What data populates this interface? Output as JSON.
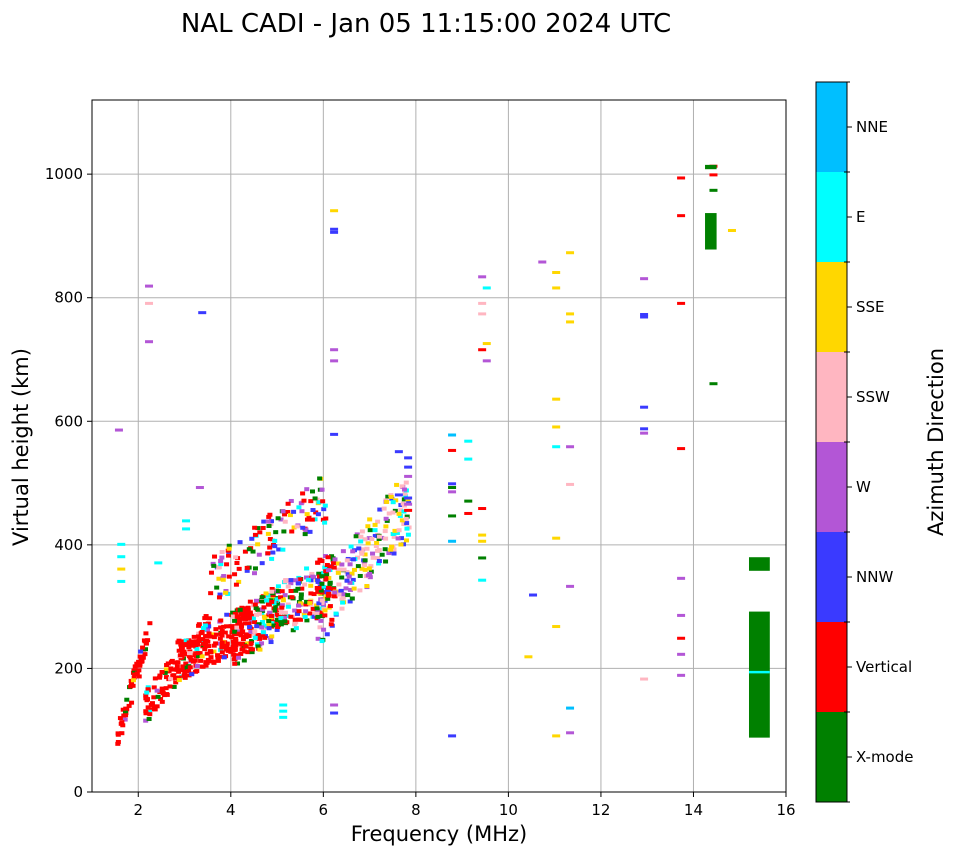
{
  "chart_data": {
    "type": "scatter",
    "title": "NAL CADI - Jan 05 11:15:00 2024 UTC",
    "xlabel": "Frequency (MHz)",
    "ylabel": "Virtual height (km)",
    "xlim": [
      1,
      16
    ],
    "ylim": [
      0,
      1120
    ],
    "xticks": [
      2,
      4,
      6,
      8,
      10,
      12,
      14,
      16
    ],
    "yticks": [
      0,
      200,
      400,
      600,
      800,
      1000
    ],
    "grid": true,
    "colorbar": {
      "label": "Azimuth Direction",
      "categories": [
        {
          "name": "X-mode",
          "color": "#008000"
        },
        {
          "name": "Vertical",
          "color": "#ff0000"
        },
        {
          "name": "NNW",
          "color": "#3a3aff"
        },
        {
          "name": "W",
          "color": "#b356d6"
        },
        {
          "name": "SSW",
          "color": "#ffb6c1"
        },
        {
          "name": "SSE",
          "color": "#ffd700"
        },
        {
          "name": "E",
          "color": "#00ffff"
        },
        {
          "name": "NNE",
          "color": "#00bfff"
        }
      ]
    },
    "echoes": [
      {
        "f": 1.55,
        "h": 585,
        "dir": "W"
      },
      {
        "f": 1.6,
        "h": 400,
        "dir": "E"
      },
      {
        "f": 1.6,
        "h": 380,
        "dir": "E"
      },
      {
        "f": 1.6,
        "h": 360,
        "dir": "SSE"
      },
      {
        "f": 1.6,
        "h": 340,
        "dir": "E"
      },
      {
        "f": 2.2,
        "h": 818,
        "dir": "W"
      },
      {
        "f": 2.2,
        "h": 790,
        "dir": "SSW"
      },
      {
        "f": 2.2,
        "h": 728,
        "dir": "W"
      },
      {
        "f": 2.4,
        "h": 370,
        "dir": "E"
      },
      {
        "f": 3.0,
        "h": 438,
        "dir": "E"
      },
      {
        "f": 3.0,
        "h": 425,
        "dir": "E"
      },
      {
        "f": 3.3,
        "h": 492,
        "dir": "W"
      },
      {
        "f": 3.35,
        "h": 775,
        "dir": "NNW"
      },
      {
        "f": 5.1,
        "h": 140,
        "dir": "E"
      },
      {
        "f": 5.1,
        "h": 130,
        "dir": "E"
      },
      {
        "f": 5.1,
        "h": 120,
        "dir": "E"
      },
      {
        "f": 6.2,
        "h": 940,
        "dir": "SSE"
      },
      {
        "f": 6.2,
        "h": 910,
        "dir": "NNW"
      },
      {
        "f": 6.2,
        "h": 905,
        "dir": "NNW"
      },
      {
        "f": 6.2,
        "h": 715,
        "dir": "W"
      },
      {
        "f": 6.2,
        "h": 697,
        "dir": "W"
      },
      {
        "f": 6.2,
        "h": 578,
        "dir": "NNW"
      },
      {
        "f": 6.2,
        "h": 140,
        "dir": "W"
      },
      {
        "f": 6.2,
        "h": 127,
        "dir": "NNW"
      },
      {
        "f": 7.6,
        "h": 550,
        "dir": "NNW"
      },
      {
        "f": 7.8,
        "h": 540,
        "dir": "NNW"
      },
      {
        "f": 7.8,
        "h": 525,
        "dir": "NNW"
      },
      {
        "f": 7.8,
        "h": 510,
        "dir": "W"
      },
      {
        "f": 7.6,
        "h": 480,
        "dir": "NNW"
      },
      {
        "f": 7.8,
        "h": 475,
        "dir": "NNW"
      },
      {
        "f": 7.8,
        "h": 465,
        "dir": "W"
      },
      {
        "f": 7.8,
        "h": 455,
        "dir": "Vertical"
      },
      {
        "f": 8.75,
        "h": 577,
        "dir": "NNE"
      },
      {
        "f": 8.75,
        "h": 552,
        "dir": "Vertical"
      },
      {
        "f": 8.75,
        "h": 498,
        "dir": "NNW"
      },
      {
        "f": 8.75,
        "h": 492,
        "dir": "X-mode"
      },
      {
        "f": 8.75,
        "h": 485,
        "dir": "W"
      },
      {
        "f": 8.75,
        "h": 446,
        "dir": "X-mode"
      },
      {
        "f": 8.75,
        "h": 405,
        "dir": "NNE"
      },
      {
        "f": 8.75,
        "h": 90,
        "dir": "NNW"
      },
      {
        "f": 9.1,
        "h": 567,
        "dir": "E"
      },
      {
        "f": 9.1,
        "h": 538,
        "dir": "E"
      },
      {
        "f": 9.1,
        "h": 470,
        "dir": "X-mode"
      },
      {
        "f": 9.1,
        "h": 450,
        "dir": "Vertical"
      },
      {
        "f": 9.4,
        "h": 833,
        "dir": "W"
      },
      {
        "f": 9.5,
        "h": 815,
        "dir": "E"
      },
      {
        "f": 9.4,
        "h": 790,
        "dir": "SSW"
      },
      {
        "f": 9.4,
        "h": 773,
        "dir": "SSW"
      },
      {
        "f": 9.5,
        "h": 725,
        "dir": "SSE"
      },
      {
        "f": 9.4,
        "h": 715,
        "dir": "Vertical"
      },
      {
        "f": 9.5,
        "h": 697,
        "dir": "W"
      },
      {
        "f": 9.4,
        "h": 458,
        "dir": "Vertical"
      },
      {
        "f": 9.4,
        "h": 415,
        "dir": "SSE"
      },
      {
        "f": 9.4,
        "h": 405,
        "dir": "SSE"
      },
      {
        "f": 9.4,
        "h": 378,
        "dir": "X-mode"
      },
      {
        "f": 9.4,
        "h": 342,
        "dir": "E"
      },
      {
        "f": 10.4,
        "h": 218,
        "dir": "SSE"
      },
      {
        "f": 10.5,
        "h": 318,
        "dir": "NNW"
      },
      {
        "f": 10.7,
        "h": 857,
        "dir": "W"
      },
      {
        "f": 11.0,
        "h": 840,
        "dir": "SSE"
      },
      {
        "f": 11.0,
        "h": 815,
        "dir": "SSE"
      },
      {
        "f": 11.0,
        "h": 635,
        "dir": "SSE"
      },
      {
        "f": 11.0,
        "h": 590,
        "dir": "SSE"
      },
      {
        "f": 11.0,
        "h": 558,
        "dir": "E"
      },
      {
        "f": 11.0,
        "h": 410,
        "dir": "SSE"
      },
      {
        "f": 11.0,
        "h": 267,
        "dir": "SSE"
      },
      {
        "f": 11.0,
        "h": 90,
        "dir": "SSE"
      },
      {
        "f": 11.3,
        "h": 872,
        "dir": "SSE"
      },
      {
        "f": 11.3,
        "h": 773,
        "dir": "SSE"
      },
      {
        "f": 11.3,
        "h": 760,
        "dir": "SSE"
      },
      {
        "f": 11.3,
        "h": 558,
        "dir": "W"
      },
      {
        "f": 11.3,
        "h": 497,
        "dir": "SSW"
      },
      {
        "f": 11.3,
        "h": 332,
        "dir": "W"
      },
      {
        "f": 11.3,
        "h": 135,
        "dir": "NNE"
      },
      {
        "f": 11.3,
        "h": 95,
        "dir": "W"
      },
      {
        "f": 12.9,
        "h": 830,
        "dir": "W"
      },
      {
        "f": 12.9,
        "h": 772,
        "dir": "NNW"
      },
      {
        "f": 12.9,
        "h": 768,
        "dir": "NNW"
      },
      {
        "f": 12.9,
        "h": 622,
        "dir": "NNW"
      },
      {
        "f": 12.9,
        "h": 587,
        "dir": "NNW"
      },
      {
        "f": 12.9,
        "h": 580,
        "dir": "W"
      },
      {
        "f": 12.9,
        "h": 182,
        "dir": "SSW"
      },
      {
        "f": 13.7,
        "h": 993,
        "dir": "Vertical"
      },
      {
        "f": 13.7,
        "h": 932,
        "dir": "Vertical"
      },
      {
        "f": 13.7,
        "h": 790,
        "dir": "Vertical"
      },
      {
        "f": 13.7,
        "h": 555,
        "dir": "Vertical"
      },
      {
        "f": 13.7,
        "h": 345,
        "dir": "W"
      },
      {
        "f": 13.7,
        "h": 285,
        "dir": "W"
      },
      {
        "f": 13.7,
        "h": 248,
        "dir": "Vertical"
      },
      {
        "f": 13.7,
        "h": 222,
        "dir": "W"
      },
      {
        "f": 13.7,
        "h": 188,
        "dir": "W"
      },
      {
        "f": 14.4,
        "h": 1012,
        "dir": "Vertical"
      },
      {
        "f": 14.4,
        "h": 998,
        "dir": "Vertical"
      },
      {
        "f": 14.4,
        "h": 973,
        "dir": "X-mode"
      },
      {
        "f": 14.8,
        "h": 908,
        "dir": "SSE"
      },
      {
        "f": 14.4,
        "h": 660,
        "dir": "X-mode"
      }
    ],
    "echo_bars": [
      {
        "f0": 14.25,
        "f1": 14.5,
        "h0": 878,
        "h1": 937,
        "dir": "X-mode"
      },
      {
        "f0": 14.25,
        "f1": 14.5,
        "h0": 1008,
        "h1": 1015,
        "dir": "X-mode"
      },
      {
        "f0": 15.2,
        "f1": 15.65,
        "h0": 358,
        "h1": 380,
        "dir": "X-mode"
      },
      {
        "f0": 15.2,
        "f1": 15.65,
        "h0": 88,
        "h1": 292,
        "dir": "X-mode"
      },
      {
        "f0": 15.2,
        "f1": 15.65,
        "h0": 192,
        "h1": 196,
        "dir": "E"
      }
    ],
    "echo_traces": [
      {
        "f0": 1.5,
        "f1": 2.2,
        "h0": 90,
        "h1": 270,
        "spread": 40,
        "count": 60
      },
      {
        "f0": 2.1,
        "f1": 3.5,
        "h0": 140,
        "h1": 270,
        "spread": 55,
        "count": 120
      },
      {
        "f0": 2.8,
        "f1": 5.0,
        "h0": 215,
        "h1": 300,
        "spread": 70,
        "count": 240
      },
      {
        "f0": 4.0,
        "f1": 6.2,
        "h0": 250,
        "h1": 350,
        "spread": 90,
        "count": 260
      },
      {
        "f0": 3.5,
        "f1": 6.0,
        "h0": 340,
        "h1": 480,
        "spread": 80,
        "count": 130
      },
      {
        "f0": 5.8,
        "f1": 7.8,
        "h0": 290,
        "h1": 470,
        "spread": 110,
        "count": 220
      }
    ]
  }
}
